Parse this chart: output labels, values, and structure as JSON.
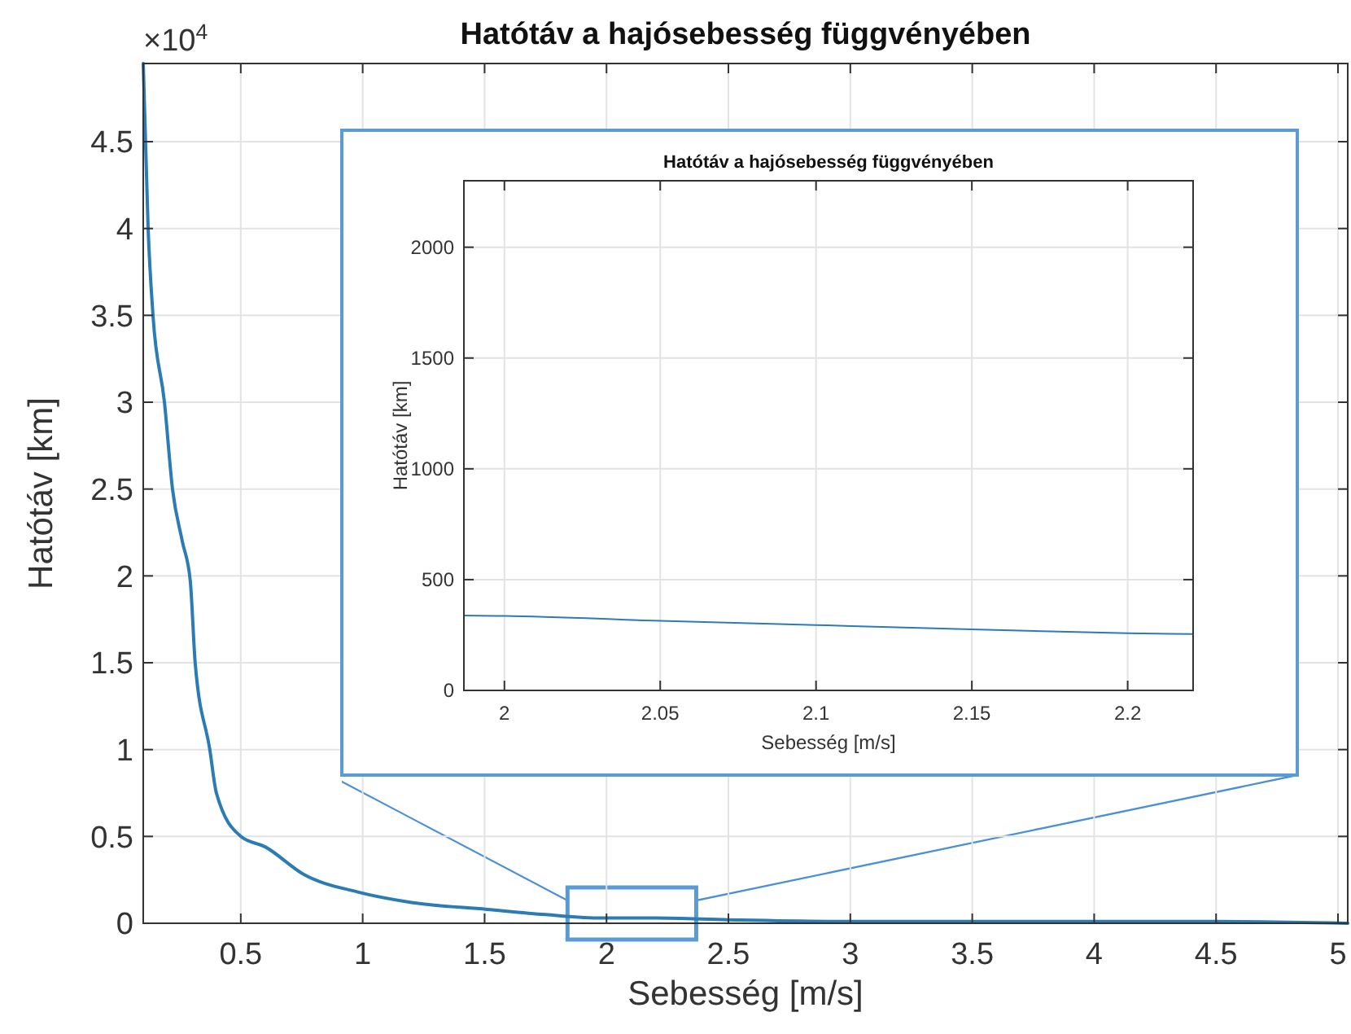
{
  "chart_data": [
    {
      "type": "line",
      "title": "Hatótáv a hajósebesség függvényében",
      "xlabel": "Sebesség [m/s]",
      "ylabel": "Hatótáv [km]",
      "annotations": [
        "×10$^{4}$"
      ],
      "series": [
        {
          "color": "#2b7bb5",
          "x": [
            0.1,
            0.12,
            0.14,
            0.187,
            0.22,
            0.26,
            0.293,
            0.313,
            0.373,
            0.4,
            0.5,
            0.6,
            0.76,
            0.98,
            1.2,
            1.51,
            1.75,
            1.98,
            2.2,
            2.5,
            3,
            3.5,
            4,
            4.5,
            5.04
          ],
          "values": [
            4.95,
            4,
            3.5,
            3,
            2.5,
            2.2,
            1.97,
            1.5,
            1,
            0.75,
            0.5,
            0.44,
            0.28,
            0.18,
            0.12,
            0.08,
            0.05,
            0.03,
            0.03,
            0.02,
            0.01,
            0.01,
            0.01,
            0.01,
            0.0
          ]
        }
      ],
      "xlim": [
        0.1,
        5.04
      ],
      "ylim": [
        0,
        4.95
      ],
      "xticks": [
        0.5,
        1,
        1.5,
        2,
        2.5,
        3,
        3.5,
        4,
        4.5,
        5
      ],
      "yticks": [
        0,
        0.5,
        1,
        1.5,
        2,
        2.5,
        3,
        3.5,
        4,
        4.5
      ],
      "grid": true
    },
    {
      "type": "line",
      "title": "Hatótáv a hajósebesség függvényében",
      "xlabel": "Sebesség [m/s]",
      "ylabel": "Hatótáv [km]",
      "series": [
        {
          "color": "#2b7bb5",
          "x": [
            1.987,
            2,
            2.05,
            2.1,
            2.15,
            2.2,
            2.221
          ],
          "values": [
            338,
            336,
            314,
            295,
            276,
            258,
            254
          ]
        }
      ],
      "xlim": [
        1.987,
        2.221
      ],
      "ylim": [
        0,
        2300
      ],
      "xticks": [
        2,
        2.05,
        2.1,
        2.15,
        2.2
      ],
      "yticks": [
        0,
        500,
        1000,
        1500,
        2000
      ],
      "grid": true
    }
  ]
}
